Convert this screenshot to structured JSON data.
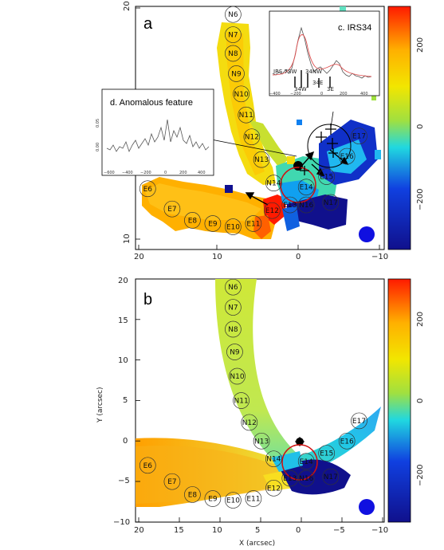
{
  "chart_data": [
    {
      "panel_label": "a",
      "type": "heatmap",
      "xticks": [
        "20",
        "10",
        "0",
        "−10"
      ],
      "yticks": [
        "20",
        "10"
      ],
      "ylim": [
        -10,
        20
      ],
      "xlim": [
        20,
        -10
      ],
      "colorbar": {
        "range": [
          -300,
          300
        ],
        "ticks": [
          "200",
          "0",
          "−200"
        ]
      },
      "clumps": [
        {
          "name": "N6",
          "x": 8.0,
          "y": 19.0
        },
        {
          "name": "N7",
          "x": 8.0,
          "y": 16.5
        },
        {
          "name": "N8",
          "x": 8.0,
          "y": 14.2
        },
        {
          "name": "N9",
          "x": 7.6,
          "y": 11.7
        },
        {
          "name": "N10",
          "x": 7.0,
          "y": 9.2
        },
        {
          "name": "N11",
          "x": 6.4,
          "y": 6.6
        },
        {
          "name": "N12",
          "x": 5.7,
          "y": 3.9
        },
        {
          "name": "N13",
          "x": 4.5,
          "y": 1.1
        },
        {
          "name": "N14",
          "x": 3.0,
          "y": -1.8
        },
        {
          "name": "E14",
          "x": -1.0,
          "y": -2.3
        },
        {
          "name": "E15",
          "x": -3.5,
          "y": -1.0
        },
        {
          "name": "E16",
          "x": -6.0,
          "y": 1.5
        },
        {
          "name": "E17",
          "x": -7.5,
          "y": 4.0
        },
        {
          "name": "N16",
          "x": -1.0,
          "y": -4.5
        },
        {
          "name": "N17",
          "x": -4.0,
          "y": -4.2
        },
        {
          "name": "E13",
          "x": 1.0,
          "y": -4.5
        },
        {
          "name": "E12",
          "x": 3.2,
          "y": -5.2
        },
        {
          "name": "E11",
          "x": 5.5,
          "y": -6.8
        },
        {
          "name": "E10",
          "x": 8.0,
          "y": -7.2
        },
        {
          "name": "E9",
          "x": 10.5,
          "y": -6.8
        },
        {
          "name": "E8",
          "x": 13.0,
          "y": -6.4
        },
        {
          "name": "E7",
          "x": 15.5,
          "y": -5.0
        },
        {
          "name": "E6",
          "x": 18.5,
          "y": -2.5
        }
      ],
      "inset_irs34": {
        "title": "c. IRS34",
        "labels": [
          "IRS 7SW",
          "34NW",
          "34W",
          "34E",
          "3E"
        ],
        "xticks": [
          "−400",
          "−200",
          "0",
          "200",
          "400"
        ]
      },
      "inset_anomalous": {
        "title": "d. Anomalous feature",
        "xticks": [
          "−600",
          "−400",
          "−200",
          "0",
          "200",
          "400"
        ],
        "yticks": [
          "0.05",
          "0.00"
        ]
      }
    },
    {
      "panel_label": "b",
      "type": "heatmap",
      "xlabel": "X (arcsec)",
      "ylabel": "Y (arcsec)",
      "xticks": [
        "20",
        "15",
        "10",
        "5",
        "0",
        "−5",
        "−10"
      ],
      "yticks": [
        "20",
        "15",
        "10",
        "5",
        "0",
        "−5",
        "−10"
      ],
      "xlim": [
        20,
        -10
      ],
      "ylim": [
        -10,
        20
      ],
      "colorbar": {
        "range": [
          -300,
          300
        ],
        "ticks": [
          "200",
          "0",
          "−200"
        ]
      },
      "clumps": [
        {
          "name": "N6",
          "x": 8.0,
          "y": 19.0
        },
        {
          "name": "N7",
          "x": 8.0,
          "y": 16.5
        },
        {
          "name": "N8",
          "x": 8.0,
          "y": 13.8
        },
        {
          "name": "N9",
          "x": 7.8,
          "y": 11.0
        },
        {
          "name": "N10",
          "x": 7.5,
          "y": 8.0
        },
        {
          "name": "N11",
          "x": 7.0,
          "y": 5.0
        },
        {
          "name": "N12",
          "x": 6.0,
          "y": 2.3
        },
        {
          "name": "N13",
          "x": 4.5,
          "y": 0.0
        },
        {
          "name": "N14",
          "x": 3.0,
          "y": -2.2
        },
        {
          "name": "E14",
          "x": -1.0,
          "y": -2.5
        },
        {
          "name": "E15",
          "x": -3.5,
          "y": -1.5
        },
        {
          "name": "E16",
          "x": -6.0,
          "y": 0.0
        },
        {
          "name": "E17",
          "x": -7.5,
          "y": 2.5
        },
        {
          "name": "N16",
          "x": -1.0,
          "y": -4.6
        },
        {
          "name": "N17",
          "x": -4.0,
          "y": -4.4
        },
        {
          "name": "E13",
          "x": 1.0,
          "y": -4.6
        },
        {
          "name": "E12",
          "x": 3.0,
          "y": -5.8
        },
        {
          "name": "E11",
          "x": 5.5,
          "y": -7.1
        },
        {
          "name": "E10",
          "x": 8.0,
          "y": -7.3
        },
        {
          "name": "E9",
          "x": 10.5,
          "y": -7.1
        },
        {
          "name": "E8",
          "x": 13.0,
          "y": -6.6
        },
        {
          "name": "E7",
          "x": 15.5,
          "y": -5.0
        },
        {
          "name": "E6",
          "x": 18.5,
          "y": -3.0
        }
      ]
    }
  ],
  "colors": {
    "red": "#ff1a00",
    "orange": "#ffb000",
    "yellow": "#f2e600",
    "green": "#a0e040",
    "cyan": "#20d8e0",
    "blue": "#1040e0",
    "navy": "#10108c"
  }
}
